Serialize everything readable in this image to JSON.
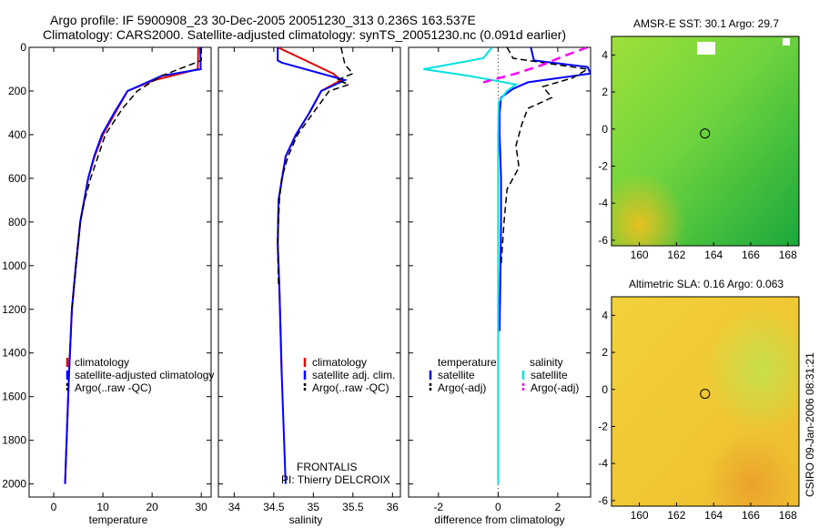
{
  "header": {
    "line1": "Argo profile: IF 5900908_23 30-Dec-2005 20051230_313 0.236S 163.537E",
    "line2": "Climatology: CARS2000. Satellite-adjusted climatology: synTS_20051230.nc (0.091d earlier)"
  },
  "side_label": "CSIRO 09-Jan-2006 08:31:21",
  "credits": {
    "line1": "FRONTALIS",
    "line2": "PI: Thierry DELCROIX"
  },
  "colors": {
    "climatology": "#e00000",
    "satellite": "#0000ff",
    "argo": "#000000",
    "satellite_salinity": "#00e0e0",
    "argo_salinity": "#ff00ff"
  },
  "chart_data": [
    {
      "type": "line",
      "xlabel": "temperature",
      "ylim": [
        0,
        2060
      ],
      "xlim": [
        -5,
        32
      ],
      "y_inverted": true,
      "yticks": [
        0,
        200,
        400,
        600,
        800,
        1000,
        1200,
        1400,
        1600,
        1800,
        2000
      ],
      "xticks": [
        0,
        10,
        20,
        30
      ],
      "legend": {
        "placement": "lower-right",
        "entries": [
          "climatology",
          "satellite-adjusted climatology",
          "Argo(..raw -QC)"
        ]
      },
      "series": [
        {
          "name": "climatology",
          "style": "solid",
          "color": "#e00000",
          "depth": [
            0,
            100,
            150,
            200,
            300,
            400,
            500,
            600,
            800,
            1000,
            1200,
            1500,
            2000
          ],
          "values": [
            29.4,
            29.3,
            20.5,
            15.0,
            12.5,
            10.0,
            8.3,
            7.0,
            5.4,
            4.5,
            3.7,
            3.1,
            2.3
          ]
        },
        {
          "name": "satellite-adjusted climatology",
          "style": "solid",
          "color": "#0000ff",
          "depth": [
            0,
            100,
            130,
            200,
            300,
            400,
            500,
            600,
            800,
            1000,
            1200,
            1500,
            2000
          ],
          "values": [
            29.8,
            29.9,
            22.0,
            15.0,
            12.3,
            9.8,
            8.2,
            7.0,
            5.4,
            4.5,
            3.7,
            3.1,
            2.3
          ]
        },
        {
          "name": "Argo(..raw -QC)",
          "style": "dashed",
          "color": "#000000",
          "depth": [
            0,
            60,
            130,
            200,
            280,
            400,
            500,
            600,
            700,
            800,
            1000,
            1200
          ],
          "values": [
            30.0,
            30.0,
            22.0,
            17.0,
            14.0,
            10.5,
            9.0,
            7.5,
            6.3,
            5.4,
            4.5,
            3.7
          ]
        }
      ]
    },
    {
      "type": "line",
      "xlabel": "salinity",
      "ylim": [
        0,
        2060
      ],
      "xlim": [
        33.8,
        36.1
      ],
      "y_inverted": true,
      "xticks": [
        34,
        34.5,
        35,
        35.5,
        36
      ],
      "legend": {
        "placement": "lower-right",
        "entries": [
          "climatology",
          "satellite adj. clim.",
          "Argo(..raw -QC)"
        ]
      },
      "series": [
        {
          "name": "climatology",
          "style": "solid",
          "color": "#e00000",
          "depth": [
            0,
            60,
            120,
            150,
            200,
            300,
            400,
            500,
            700,
            900,
            1100,
            1500
          ],
          "values": [
            34.55,
            34.9,
            35.25,
            35.35,
            35.1,
            34.95,
            34.78,
            34.65,
            34.56,
            34.55,
            34.57,
            34.6
          ]
        },
        {
          "name": "satellite adj. clim.",
          "style": "solid",
          "color": "#0000ff",
          "depth": [
            0,
            60,
            70,
            150,
            200,
            300,
            400,
            500,
            700,
            900,
            1100,
            1500,
            2000
          ],
          "values": [
            34.55,
            34.55,
            34.6,
            35.4,
            35.1,
            34.95,
            34.78,
            34.65,
            34.56,
            34.55,
            34.57,
            34.6,
            34.65
          ]
        },
        {
          "name": "Argo(..raw -QC)",
          "style": "dashed",
          "color": "#000000",
          "depth": [
            0,
            80,
            120,
            150,
            170,
            200,
            250,
            300,
            400,
            500,
            600,
            700,
            900,
            1100
          ],
          "values": [
            35.35,
            35.4,
            35.5,
            35.3,
            35.45,
            35.2,
            35.1,
            35.0,
            34.8,
            34.68,
            34.6,
            34.57,
            34.55,
            34.56
          ]
        }
      ]
    },
    {
      "type": "line",
      "xlabel": "difference from climatology",
      "ylim": [
        0,
        2060
      ],
      "xlim": [
        -3,
        3.1
      ],
      "y_inverted": true,
      "xticks": [
        -2,
        0,
        2
      ],
      "legend": {
        "placement": "lower-right",
        "temperature_title": "temperature",
        "salinity_title": "salinity",
        "entries": [
          "satellite",
          "Argo(-adj)",
          "satellite",
          "Argo(-adj)"
        ]
      },
      "series": [
        {
          "name": "satellite",
          "group": "temperature",
          "style": "solid",
          "color": "#0000ff",
          "depth": [
            0,
            60,
            90,
            120,
            160,
            190,
            230,
            300,
            400,
            600,
            800,
            1000,
            1300
          ],
          "values": [
            1.1,
            1.2,
            3.0,
            3.1,
            1.0,
            0.5,
            0.1,
            0.05,
            0.05,
            0.1,
            0.1,
            0.08,
            0.05
          ]
        },
        {
          "name": "Argo(-adj)",
          "group": "temperature",
          "style": "dashed",
          "color": "#000000",
          "depth": [
            0,
            50,
            100,
            140,
            180,
            230,
            280,
            350,
            450,
            550,
            650,
            800,
            1000
          ],
          "values": [
            0.3,
            0.5,
            3.0,
            2.5,
            1.5,
            1.8,
            1.0,
            0.8,
            0.6,
            0.7,
            0.3,
            0.2,
            0.1
          ]
        },
        {
          "name": "satellite",
          "group": "salinity",
          "style": "solid",
          "color": "#00e0e0",
          "depth": [
            0,
            50,
            100,
            130,
            170,
            200,
            250,
            400,
            800,
            1200,
            1600,
            2000
          ],
          "values": [
            -0.2,
            -0.5,
            -2.5,
            -1.0,
            0.6,
            0.3,
            0.02,
            0.0,
            0.0,
            0.0,
            0.0,
            0.0
          ]
        },
        {
          "name": "Argo(-adj)",
          "group": "salinity",
          "style": "dashed",
          "color": "#ff00ff",
          "depth": [
            0,
            40,
            80,
            120,
            160
          ],
          "values": [
            3.0,
            2.2,
            1.5,
            0.6,
            -0.5
          ]
        }
      ]
    },
    {
      "type": "heatmap",
      "title": "AMSR-E SST: 30.1 Argo: 29.7",
      "xlim": [
        158.5,
        168.6
      ],
      "ylim": [
        -6.3,
        5.0
      ],
      "xticks": [
        160,
        162,
        164,
        166,
        168
      ],
      "yticks": [
        -6,
        -4,
        -2,
        0,
        2,
        4
      ],
      "marker": {
        "x": 163.537,
        "y": -0.236
      }
    },
    {
      "type": "heatmap",
      "title": "Altimetric SLA: 0.16 Argo: 0.063",
      "xlim": [
        158.5,
        168.6
      ],
      "ylim": [
        -6.3,
        5.0
      ],
      "xticks": [
        160,
        162,
        164,
        166,
        168
      ],
      "yticks": [
        -6,
        -4,
        -2,
        0,
        2,
        4
      ],
      "marker": {
        "x": 163.537,
        "y": -0.236
      }
    }
  ]
}
